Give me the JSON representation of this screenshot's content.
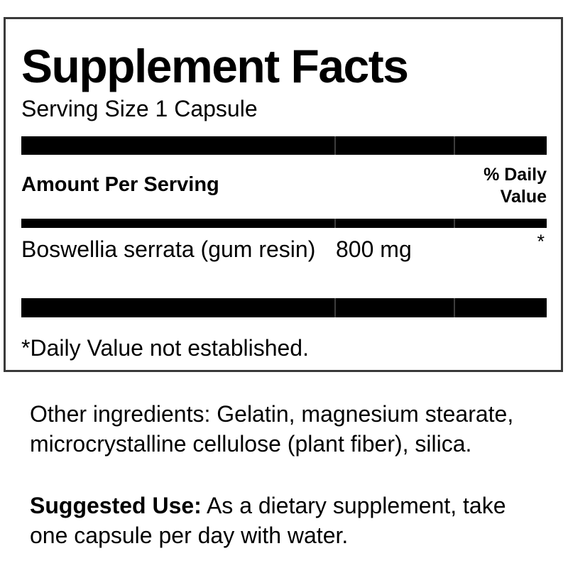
{
  "colors": {
    "text": "#000000",
    "bar": "#000000",
    "bar_divider": "#3d3d3d",
    "box_border": "#3a3a3a",
    "background": "#ffffff"
  },
  "supplement_facts": {
    "title": "Supplement Facts",
    "serving_size": "Serving Size 1 Capsule",
    "header": {
      "amount": "Amount Per Serving",
      "daily_value": "% Daily Value"
    },
    "rows": [
      {
        "name": "Boswellia serrata (gum resin)",
        "amount": "800 mg",
        "daily_value": "*"
      }
    ],
    "footnote": "*Daily Value not established."
  },
  "other_ingredients": {
    "label": "Other ingredients:",
    "text": "Gelatin, magnesium stearate, microcrystalline cellulose (plant fiber), silica."
  },
  "suggested_use": {
    "label": "Suggested Use:",
    "text": "As a dietary supplement, take one capsule per day with water."
  }
}
